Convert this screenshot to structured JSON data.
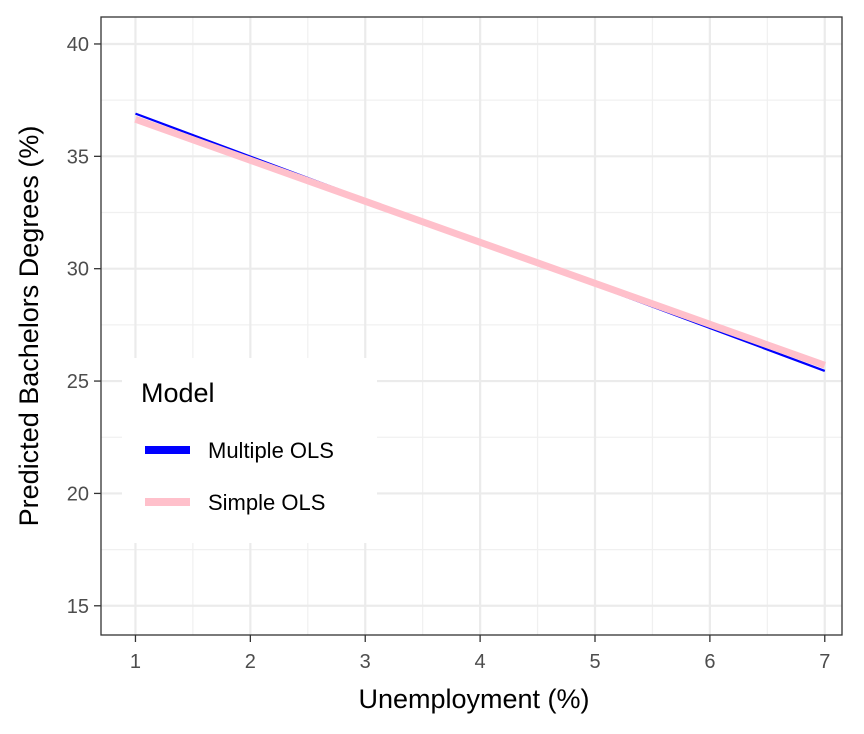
{
  "chart_data": {
    "type": "line",
    "xlabel": "Unemployment (%)",
    "ylabel": "Predicted Bachelors Degrees (%)",
    "xlim": [
      0.7,
      7.15
    ],
    "ylim": [
      13.7,
      41.2
    ],
    "x_ticks": [
      1,
      2,
      3,
      4,
      5,
      6,
      7
    ],
    "y_ticks": [
      15,
      20,
      25,
      30,
      35,
      40
    ],
    "grid": true,
    "legend": {
      "title": "Model",
      "placement": "left-center",
      "entries": [
        "Multiple OLS",
        "Simple OLS"
      ]
    },
    "series": [
      {
        "name": "Multiple OLS",
        "color": "#0000ff",
        "x": [
          1,
          7
        ],
        "y": [
          36.9,
          25.45
        ]
      },
      {
        "name": "Simple OLS",
        "color": "#ffc0cb",
        "x": [
          1,
          7
        ],
        "y": [
          36.65,
          25.7
        ]
      }
    ]
  }
}
